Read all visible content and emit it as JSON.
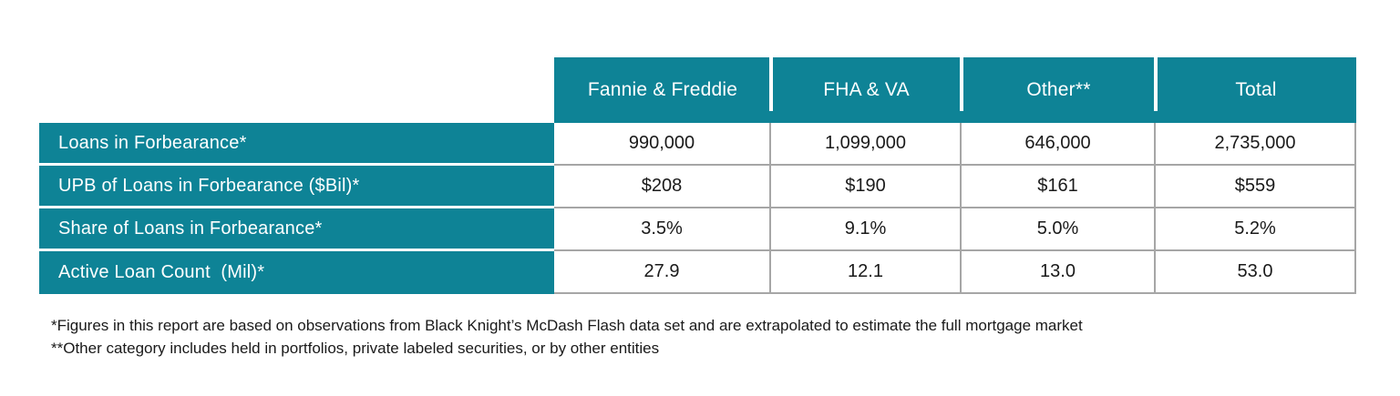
{
  "colors": {
    "header_teal": "#0E8396",
    "grid_grey": "#A6A6A6",
    "text_dark": "#1A1A1A",
    "header_text": "#FFFFFF"
  },
  "chart_data": {
    "type": "table",
    "columns": [
      "Fannie & Freddie",
      "FHA & VA",
      "Other**",
      "Total"
    ],
    "rows": [
      {
        "label": "Loans in Forbearance*",
        "values": [
          "990,000",
          "1,099,000",
          "646,000",
          "2,735,000"
        ]
      },
      {
        "label": "UPB of Loans in Forbearance ($Bil)*",
        "values": [
          "$208",
          "$190",
          "$161",
          "$559"
        ]
      },
      {
        "label": "Share of Loans in Forbearance*",
        "values": [
          "3.5%",
          "9.1%",
          "5.0%",
          "5.2%"
        ]
      },
      {
        "label": "Active Loan Count  (Mil)*",
        "values": [
          "27.9",
          "12.1",
          "13.0",
          "53.0"
        ]
      }
    ]
  },
  "footnotes": [
    "*Figures in this report are based on observations from Black Knight’s McDash Flash data set and are extrapolated to estimate the full mortgage market",
    "**Other category includes held in portfolios, private labeled securities, or by other entities"
  ]
}
